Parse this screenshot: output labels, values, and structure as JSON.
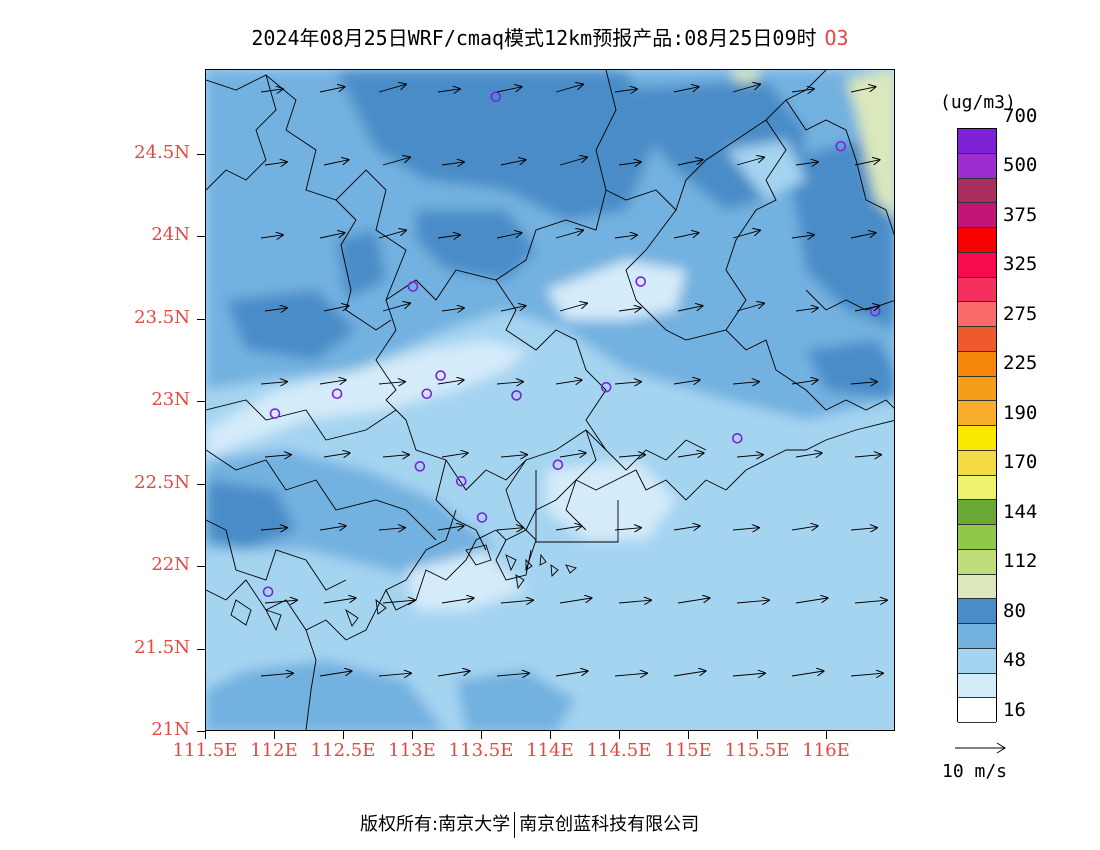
{
  "title": {
    "text": "2024年08月25日WRF/cmaq模式12km预报产品:08月25日09时",
    "pollutant": "O3"
  },
  "map": {
    "lon_range": [
      111.5,
      116.5
    ],
    "lat_range": [
      21.0,
      25.0
    ],
    "lat_ticks": [
      "24.5N",
      "24N",
      "23.5N",
      "23N",
      "22.5N",
      "22N",
      "21.5N",
      "21N"
    ],
    "lat_values": [
      24.5,
      24.0,
      23.5,
      23.0,
      22.5,
      22.0,
      21.5,
      21.0
    ],
    "lon_ticks": [
      "111.5E",
      "112E",
      "112.5E",
      "113E",
      "113.5E",
      "114E",
      "114.5E",
      "115E",
      "115.5E",
      "116E"
    ],
    "lon_values": [
      111.5,
      112.0,
      112.5,
      113.0,
      113.5,
      114.0,
      114.5,
      115.0,
      115.5,
      116.0
    ],
    "stations": [
      {
        "lon": 113.6,
        "lat": 24.85
      },
      {
        "lon": 116.1,
        "lat": 24.55
      },
      {
        "lon": 113.0,
        "lat": 23.7
      },
      {
        "lon": 114.65,
        "lat": 23.73
      },
      {
        "lon": 116.35,
        "lat": 23.55
      },
      {
        "lon": 112.45,
        "lat": 23.05
      },
      {
        "lon": 112.0,
        "lat": 22.93
      },
      {
        "lon": 113.1,
        "lat": 23.05
      },
      {
        "lon": 113.2,
        "lat": 23.16
      },
      {
        "lon": 113.75,
        "lat": 23.04
      },
      {
        "lon": 114.4,
        "lat": 23.09
      },
      {
        "lon": 115.35,
        "lat": 22.78
      },
      {
        "lon": 113.05,
        "lat": 22.61
      },
      {
        "lon": 113.35,
        "lat": 22.52
      },
      {
        "lon": 114.05,
        "lat": 22.62
      },
      {
        "lon": 113.5,
        "lat": 22.3
      },
      {
        "lon": 111.95,
        "lat": 21.85
      }
    ],
    "wind_field": "mostly westerly to west-south-westerly, 5-12 m/s"
  },
  "colorbar": {
    "unit": "(ug/m3)",
    "colors": [
      "#ffffff",
      "#d4ebf9",
      "#a5d4f1",
      "#73b1e0",
      "#4a8cc7",
      "#dbe8bb",
      "#c1dd7a",
      "#8fc84a",
      "#6aa934",
      "#eef36e",
      "#f6da45",
      "#fbe800",
      "#f8ae2c",
      "#f59e1a",
      "#f7870a",
      "#ee5a2c",
      "#fc6b6b",
      "#f6305e",
      "#f70b4c",
      "#f60000",
      "#c21578",
      "#a82e60",
      "#9c2dcf",
      "#7e22d8"
    ],
    "labels": [
      {
        "text": "16",
        "index": 1
      },
      {
        "text": "48",
        "index": 3
      },
      {
        "text": "80",
        "index": 5
      },
      {
        "text": "112",
        "index": 7
      },
      {
        "text": "144",
        "index": 9
      },
      {
        "text": "170",
        "index": 11
      },
      {
        "text": "190",
        "index": 13
      },
      {
        "text": "225",
        "index": 15
      },
      {
        "text": "275",
        "index": 17
      },
      {
        "text": "325",
        "index": 19
      },
      {
        "text": "375",
        "index": 21
      },
      {
        "text": "500",
        "index": 23
      },
      {
        "text": "700",
        "index": 25
      }
    ]
  },
  "reference_vector": {
    "label": "10 m/s"
  },
  "footer": {
    "left": "版权所有:南京大学",
    "right": "南京创蓝科技有限公司"
  }
}
